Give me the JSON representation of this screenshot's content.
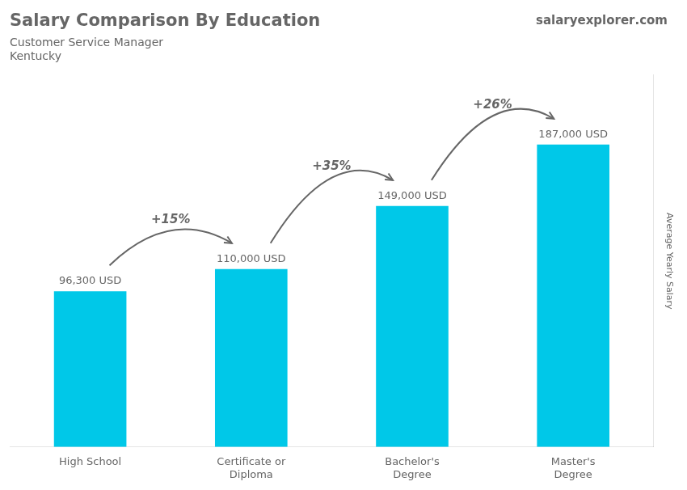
{
  "chart_data": {
    "type": "bar",
    "title": "Salary Comparison By Education",
    "subtitle": [
      "Customer Service Manager",
      "Kentucky"
    ],
    "y_label": "Average Yearly Salary",
    "categories": [
      "High School",
      "Certificate or\nDiploma",
      "Bachelor's\nDegree",
      "Master's\nDegree"
    ],
    "values": [
      96300,
      110000,
      149000,
      187000
    ],
    "value_labels": [
      "96,300 USD",
      "110,000 USD",
      "149,000 USD",
      "187,000 USD"
    ],
    "data_labels": true,
    "color": "#00c8e8",
    "ylim": [
      0,
      230000
    ],
    "grid": false,
    "tick_labels": "x",
    "annotations": [
      {
        "text": "+15%",
        "between": [
          "High School",
          "Certificate or\nDiploma"
        ]
      },
      {
        "text": "+35%",
        "between": [
          "Certificate or\nDiploma",
          "Bachelor's\nDegree"
        ]
      },
      {
        "text": "+26%",
        "between": [
          "Bachelor's\nDegree",
          "Master's\nDegree"
        ]
      },
      {
        "text": "salary"
      },
      {
        "text": "explorer"
      },
      {
        "text": ".com"
      }
    ]
  }
}
